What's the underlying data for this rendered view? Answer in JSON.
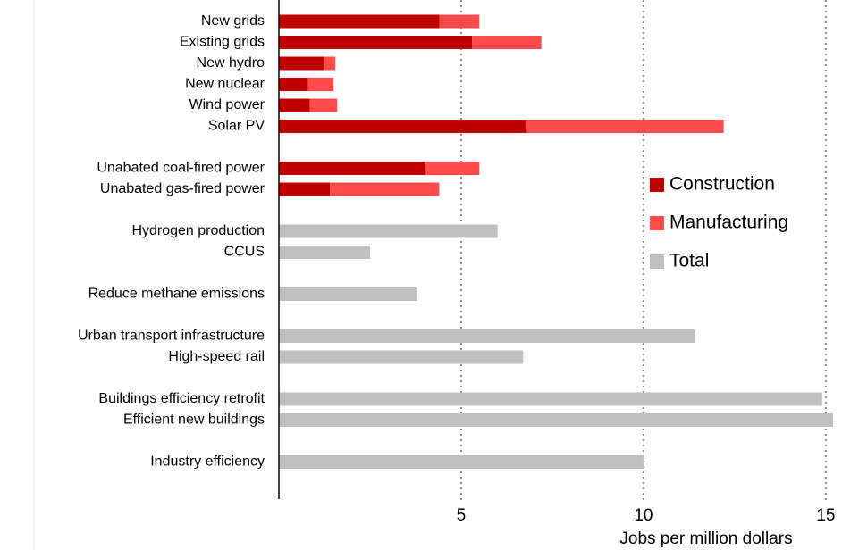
{
  "chart_data": {
    "type": "stacked_bar_horizontal",
    "categories": [
      "New grids",
      "Existing grids",
      "New hydro",
      "New nuclear",
      "Wind power",
      "Solar PV",
      null,
      "Unabated coal-fired power",
      "Unabated gas-fired power",
      null,
      "Hydrogen production",
      "CCUS",
      null,
      "Reduce methane emissions",
      null,
      "Urban transport infrastructure",
      "High-speed rail",
      null,
      "Buildings efficiency retrofit",
      "Efficient new buildings",
      null,
      "Industry efficiency"
    ],
    "series": [
      {
        "name": "Construction",
        "color": "#c00000",
        "values": [
          4.4,
          5.3,
          1.25,
          0.8,
          0.85,
          6.8,
          null,
          4.0,
          1.4,
          null,
          null,
          null,
          null,
          null,
          null,
          null,
          null,
          null,
          null,
          null,
          null,
          null
        ]
      },
      {
        "name": "Manufacturing",
        "color": "#ff4b4b",
        "values": [
          1.1,
          1.9,
          0.3,
          0.7,
          0.75,
          5.4,
          null,
          1.5,
          3.0,
          null,
          null,
          null,
          null,
          null,
          null,
          null,
          null,
          null,
          null,
          null,
          null,
          null
        ]
      },
      {
        "name": "Total",
        "color": "#bfbfbf",
        "values": [
          null,
          null,
          null,
          null,
          null,
          null,
          null,
          null,
          null,
          null,
          6.0,
          2.5,
          null,
          3.8,
          null,
          11.4,
          6.7,
          null,
          14.9,
          15.2,
          null,
          10.0
        ]
      }
    ],
    "xlabel": "Jobs per million dollars",
    "xlim": [
      0,
      15.2
    ],
    "xticks": [
      5,
      10,
      15
    ],
    "grid": true,
    "legend": "right"
  }
}
